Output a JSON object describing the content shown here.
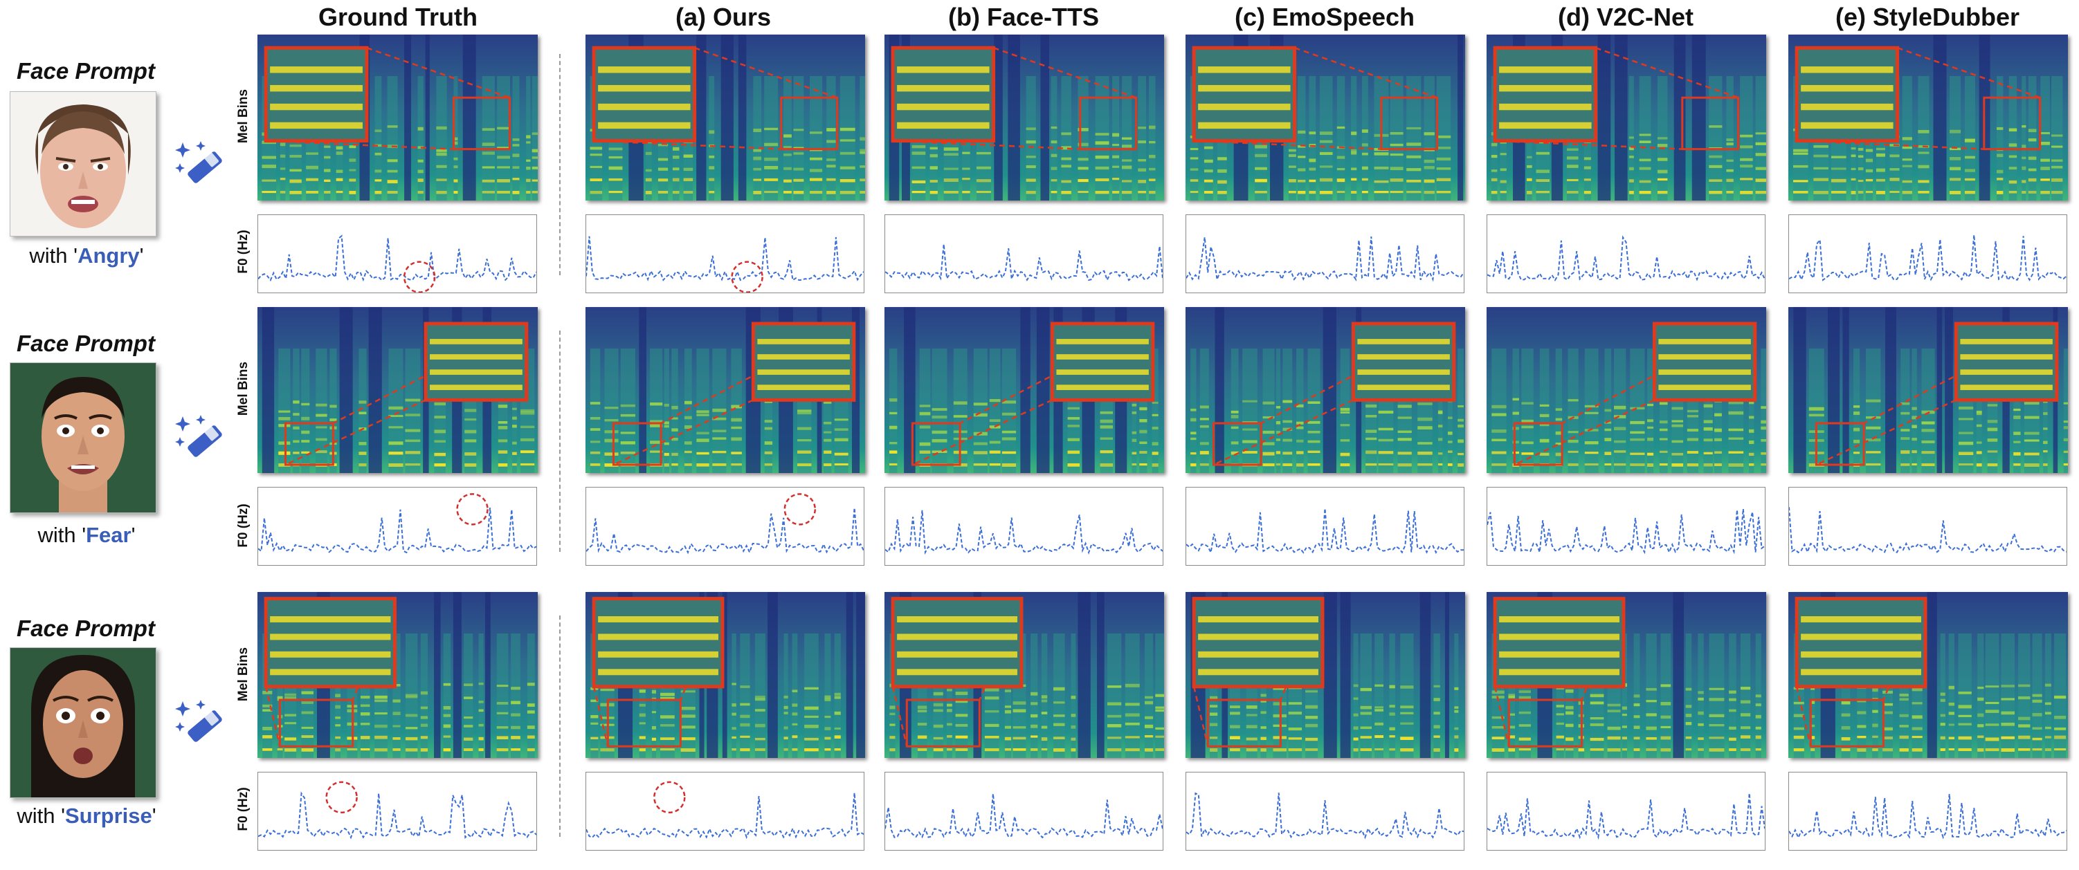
{
  "columns": [
    "Ground Truth",
    "(a) Ours",
    "(b) Face-TTS",
    "(c) EmoSpeech",
    "(d) V2C-Net",
    "(e) StyleDubber"
  ],
  "axis_labels": {
    "mel": "Mel Bins",
    "f0": "F0 (Hz)"
  },
  "rows": [
    {
      "prompt_title": "Face Prompt",
      "with_text": "with",
      "emotion": "Angry"
    },
    {
      "prompt_title": "Face Prompt",
      "with_text": "with",
      "emotion": "Fear"
    },
    {
      "prompt_title": "Face Prompt",
      "with_text": "with",
      "emotion": "Surprise"
    }
  ],
  "colors": {
    "emotion_text": "#3a5db8",
    "f0_line": "#3b6fd6",
    "zoom_box": "#e03a1e",
    "highlight_circle": "#d32f2f",
    "spectrogram_low": "#1f2f7a",
    "spectrogram_mid": "#21918c",
    "spectrogram_high": "#fde725"
  },
  "icons": {
    "prompt_to_speech": "magic-wand-icon"
  }
}
